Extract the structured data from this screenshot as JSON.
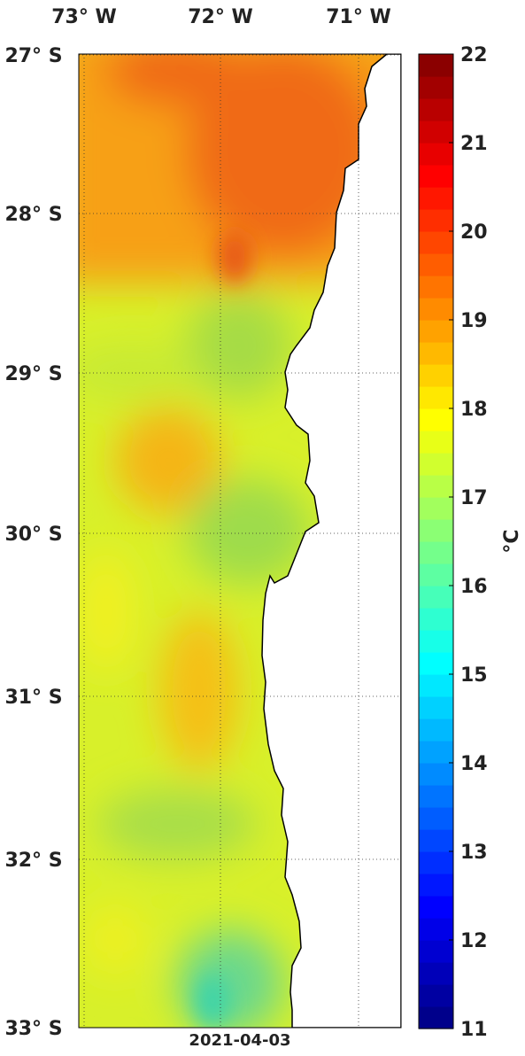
{
  "map": {
    "lon_labels": [
      "73° W",
      "72° W",
      "71° W"
    ],
    "lat_labels": [
      "27° S",
      "28° S",
      "29° S",
      "30° S",
      "31° S",
      "32° S",
      "33° S"
    ],
    "date": "2021-04-03",
    "colorbar": {
      "lim": [
        11,
        22
      ],
      "ticks": [
        11,
        12,
        13,
        14,
        15,
        16,
        17,
        18,
        19,
        20,
        21,
        22
      ],
      "label": "°C"
    }
  }
}
